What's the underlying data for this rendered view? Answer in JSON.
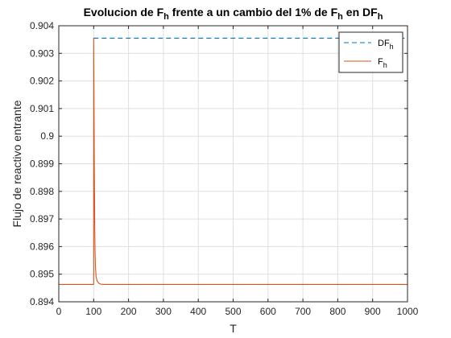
{
  "chart_data": {
    "type": "line",
    "title": {
      "parts": [
        {
          "text": "Evolucion de F"
        },
        {
          "text": "h",
          "sub": true
        },
        {
          "text": " frente a un cambio del 1% de F"
        },
        {
          "text": "h",
          "sub": true
        },
        {
          "text": " en DF"
        },
        {
          "text": "h",
          "sub": true
        }
      ]
    },
    "xlabel": "T",
    "ylabel": "Flujo de reactivo entrante",
    "xlim": [
      0,
      1000
    ],
    "ylim": [
      0.894,
      0.904
    ],
    "x_ticks": [
      0,
      100,
      200,
      300,
      400,
      500,
      600,
      700,
      800,
      900,
      1000
    ],
    "x_tick_labels": [
      "0",
      "100",
      "200",
      "300",
      "400",
      "500",
      "600",
      "700",
      "800",
      "900",
      "1000"
    ],
    "y_ticks": [
      0.894,
      0.895,
      0.896,
      0.897,
      0.898,
      0.899,
      0.9,
      0.901,
      0.902,
      0.903,
      0.904
    ],
    "y_tick_labels": [
      "0.894",
      "0.895",
      "0.896",
      "0.897",
      "0.898",
      "0.899",
      "0.9",
      "0.901",
      "0.902",
      "0.903",
      "0.904"
    ],
    "grid": true,
    "legend_position": "top-right",
    "series": [
      {
        "key": "DF",
        "name": "DF",
        "name_sub": "h",
        "color": "#0072BD",
        "style": "dashed",
        "x": [
          100,
          1000
        ],
        "y": [
          0.90355,
          0.90355
        ]
      },
      {
        "key": "F",
        "name": "F",
        "name_sub": "h",
        "color": "#D95319",
        "style": "solid",
        "x": [
          0,
          100,
          100,
          101,
          102,
          103,
          104,
          105,
          107,
          110,
          115,
          120,
          130,
          1000
        ],
        "y": [
          0.89463,
          0.89463,
          0.90355,
          0.9012,
          0.8985,
          0.8968,
          0.8958,
          0.8953,
          0.8949,
          0.89475,
          0.89467,
          0.89464,
          0.89463,
          0.89463
        ]
      }
    ]
  }
}
